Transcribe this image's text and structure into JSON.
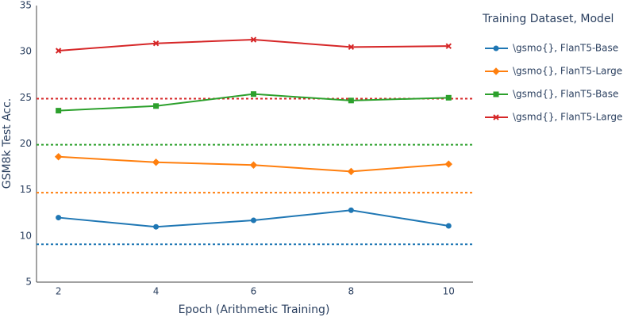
{
  "chart_data": {
    "type": "line",
    "x_label": "Epoch (Arithmetic Training)",
    "y_label": "GSM8k Test Acc.",
    "legend_title": "Training Dataset, Model",
    "x": [
      2,
      4,
      6,
      8,
      10
    ],
    "xlim": [
      1.55,
      10.5
    ],
    "xticks": [
      2,
      4,
      6,
      8,
      10
    ],
    "ylim": [
      5,
      35
    ],
    "yticks": [
      5,
      10,
      15,
      20,
      25,
      30,
      35
    ],
    "series": [
      {
        "name": "\\gsmo{}, FlanT5-Base",
        "color": "#1f77b4",
        "marker": "circle",
        "values": [
          12.0,
          11.0,
          11.7,
          12.8,
          11.1
        ],
        "baseline": 9.1
      },
      {
        "name": "\\gsmo{}, FlanT5-Large",
        "color": "#ff7f0e",
        "marker": "diamond",
        "values": [
          18.6,
          18.0,
          17.7,
          17.0,
          17.8
        ],
        "baseline": 14.7
      },
      {
        "name": "\\gsmd{}, FlanT5-Base",
        "color": "#2ca02c",
        "marker": "square",
        "values": [
          23.6,
          24.1,
          25.4,
          24.7,
          25.0
        ],
        "baseline": 19.9
      },
      {
        "name": "\\gsmd{}, FlanT5-Large",
        "color": "#d62728",
        "marker": "x",
        "values": [
          30.1,
          30.9,
          31.3,
          30.5,
          30.6
        ],
        "baseline": 24.9
      }
    ]
  }
}
